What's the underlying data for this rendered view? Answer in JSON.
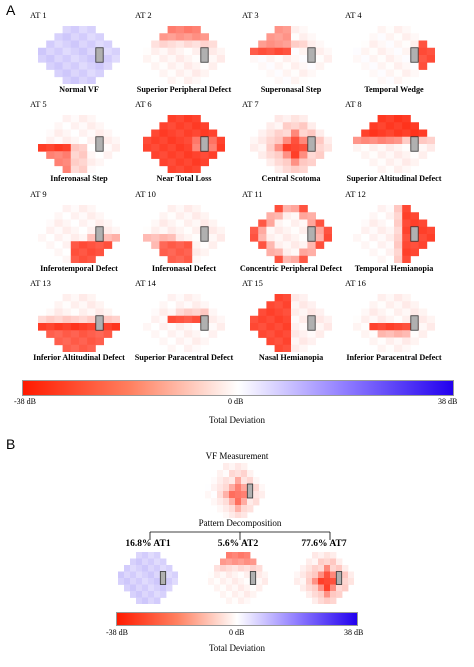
{
  "panel_a": {
    "letter": "A",
    "atlas": [
      {
        "label": "AT 1",
        "name": "Normal VF",
        "pattern": "normal"
      },
      {
        "label": "AT 2",
        "name": "Superior Peripheral Defect",
        "pattern": "sup_periph"
      },
      {
        "label": "AT 3",
        "name": "Superonasal Step",
        "pattern": "sup_nasal_step"
      },
      {
        "label": "AT 4",
        "name": "Temporal Wedge",
        "pattern": "temp_wedge"
      },
      {
        "label": "AT 5",
        "name": "Inferonasal Step",
        "pattern": "inf_nasal_step"
      },
      {
        "label": "AT 6",
        "name": "Near Total Loss",
        "pattern": "total"
      },
      {
        "label": "AT 7",
        "name": "Central Scotoma",
        "pattern": "central"
      },
      {
        "label": "AT 8",
        "name": "Superior Altitudinal Defect",
        "pattern": "sup_alt"
      },
      {
        "label": "AT 9",
        "name": "Inferotemporal Defect",
        "pattern": "inf_temp"
      },
      {
        "label": "AT 10",
        "name": "Inferonasal Defect",
        "pattern": "inf_nasal"
      },
      {
        "label": "AT 11",
        "name": "Concentric Peripheral Defect",
        "pattern": "concentric"
      },
      {
        "label": "AT 12",
        "name": "Temporal Hemianopia",
        "pattern": "temp_hemi"
      },
      {
        "label": "AT 13",
        "name": "Inferior Altitudinal Defect",
        "pattern": "inf_alt"
      },
      {
        "label": "AT 14",
        "name": "Superior Paracentral Defect",
        "pattern": "sup_para"
      },
      {
        "label": "AT 15",
        "name": "Nasal Hemianopia",
        "pattern": "nasal_hemi"
      },
      {
        "label": "AT 16",
        "name": "Inferior Paracentral Defect",
        "pattern": "inf_para"
      }
    ],
    "colorbar": {
      "min_label": "-38 dB",
      "mid_label": "0 dB",
      "max_label": "38 dB",
      "title": "Total Deviation"
    }
  },
  "panel_b": {
    "letter": "B",
    "measurement_title": "VF Measurement",
    "decomposition_title": "Pattern Decomposition",
    "components": [
      {
        "label": "16.8% AT1",
        "pattern": "normal"
      },
      {
        "label": "5.6% AT2",
        "pattern": "sup_periph"
      },
      {
        "label": "77.6% AT7",
        "pattern": "central"
      }
    ],
    "colorbar": {
      "min_label": "-38 dB",
      "mid_label": "0 dB",
      "max_label": "38 dB",
      "title": "Total Deviation"
    }
  },
  "colors": {
    "negative": "#ff1a00",
    "neutral": "#ffffff",
    "positive": "#2200ee",
    "blind_spot": "#b0b0b0"
  }
}
